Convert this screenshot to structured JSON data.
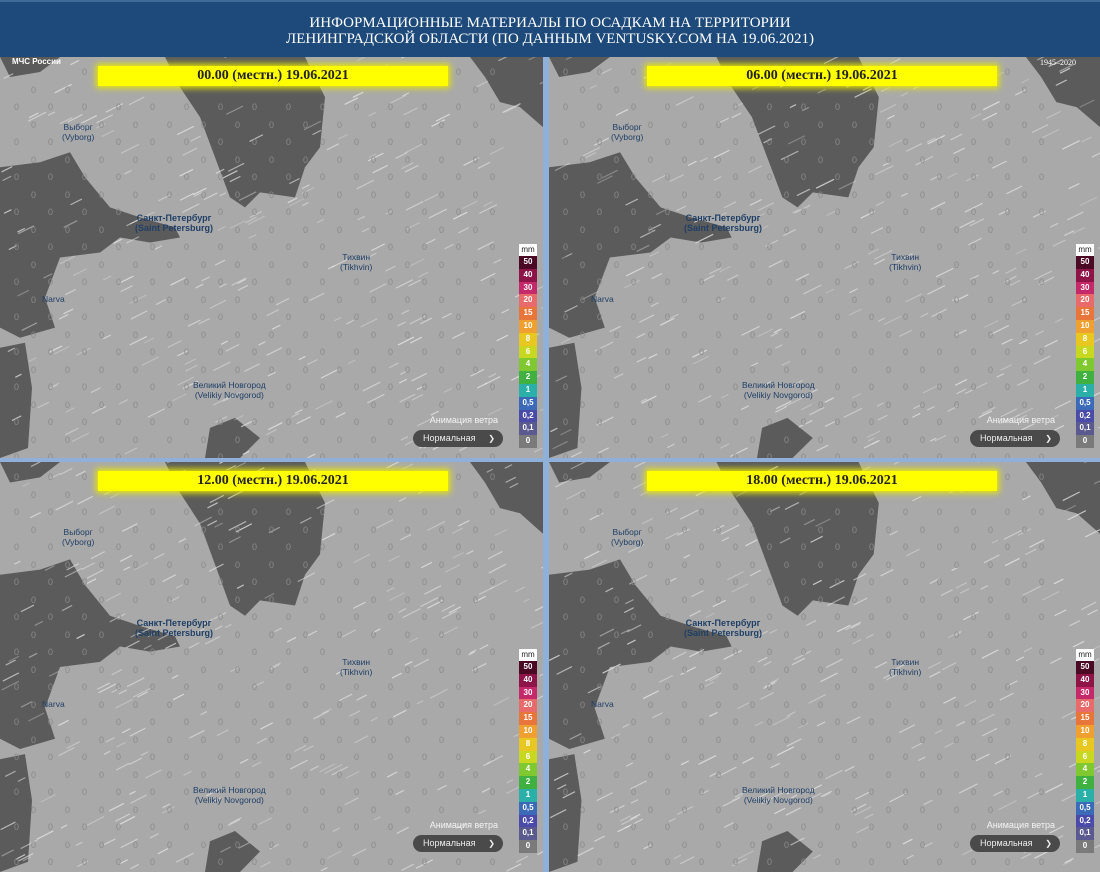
{
  "header": {
    "line1": "ИНФОРМАЦИОННЫЕ МАТЕРИАЛЫ ПО ОСАДКАМ  НА ТЕРРИТОРИИ",
    "line2": "ЛЕНИНГРАДСКОЙ ОБЛАСТИ (ПО ДАННЫМ VENTUSKY.COM НА 19.06.2021)"
  },
  "logos": {
    "left": "МЧС России",
    "right": "1945–2020"
  },
  "panels": [
    {
      "time_label": "00.00 (местн.) 19.06.2021"
    },
    {
      "time_label": "06.00 (местн.) 19.06.2021"
    },
    {
      "time_label": "12.00 (местн.) 19.06.2021"
    },
    {
      "time_label": "18.00 (местн.) 19.06.2021"
    }
  ],
  "cities": [
    {
      "name": "Выборг",
      "latin": "(Vyborg)"
    },
    {
      "name": "Санкт-Петербург",
      "latin": "(Saint Petersburg)"
    },
    {
      "name": "Тихвин",
      "latin": "(Tikhvin)"
    },
    {
      "name": "Narva",
      "latin": ""
    },
    {
      "name": "Великий Новгород",
      "latin": "(Velikiy Novgorod)"
    }
  ],
  "grid_value": "0",
  "legend": {
    "unit": "mm",
    "steps": [
      {
        "label": "50",
        "color": "#4a0a24"
      },
      {
        "label": "40",
        "color": "#8e1448"
      },
      {
        "label": "30",
        "color": "#c42a6a"
      },
      {
        "label": "20",
        "color": "#e86a6a"
      },
      {
        "label": "15",
        "color": "#e8763a"
      },
      {
        "label": "10",
        "color": "#f0a030"
      },
      {
        "label": "8",
        "color": "#e8c820"
      },
      {
        "label": "6",
        "color": "#c8d820"
      },
      {
        "label": "4",
        "color": "#80c830"
      },
      {
        "label": "2",
        "color": "#40b040"
      },
      {
        "label": "1",
        "color": "#2ab0a8"
      },
      {
        "label": "0,5",
        "color": "#3a6ab8"
      },
      {
        "label": "0,2",
        "color": "#4a4aa8"
      },
      {
        "label": "0,1",
        "color": "#5a5a90"
      },
      {
        "label": "0",
        "color": "#7a7a7a"
      }
    ]
  },
  "wind_animation": {
    "label": "Анимация ветра",
    "selected": "Нормальная"
  }
}
